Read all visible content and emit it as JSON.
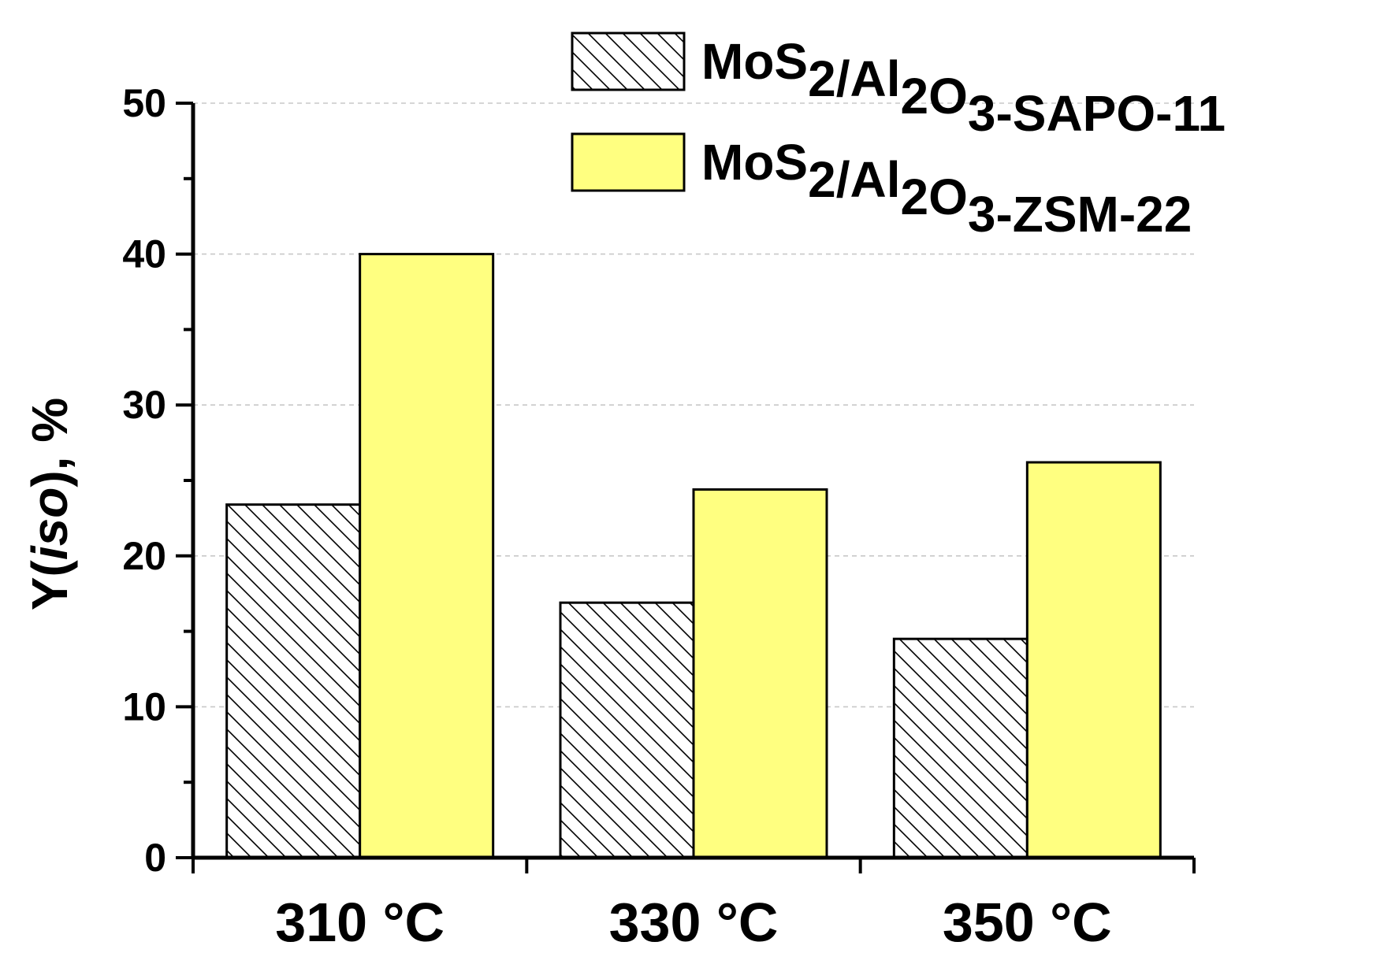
{
  "chart_data": {
    "type": "bar",
    "categories": [
      "310 °C",
      "330 °C",
      "350 °C"
    ],
    "series": [
      {
        "name": "MoS2/Al2O3-SAPO-11",
        "name_parts": [
          {
            "t": "MoS",
            "sub": false
          },
          {
            "t": "2",
            "sub": true
          },
          {
            "t": "/Al",
            "sub": false
          },
          {
            "t": "2",
            "sub": true
          },
          {
            "t": "O",
            "sub": false
          },
          {
            "t": "3",
            "sub": true
          },
          {
            "t": "-SAPO-11",
            "sub": false
          }
        ],
        "values": [
          23.4,
          16.9,
          14.5
        ],
        "fill": "hatch",
        "color": "#ffffff"
      },
      {
        "name": "MoS2/Al2O3-ZSM-22",
        "name_parts": [
          {
            "t": "MoS",
            "sub": false
          },
          {
            "t": "2",
            "sub": true
          },
          {
            "t": "/Al",
            "sub": false
          },
          {
            "t": "2",
            "sub": true
          },
          {
            "t": "O",
            "sub": false
          },
          {
            "t": "3",
            "sub": true
          },
          {
            "t": "-ZSM-22",
            "sub": false
          }
        ],
        "values": [
          40.0,
          24.4,
          26.2
        ],
        "fill": "solid",
        "color": "#ffff80"
      }
    ],
    "ylabel_parts": [
      {
        "t": "Y(",
        "italic": false
      },
      {
        "t": "iso",
        "italic": true
      },
      {
        "t": "), %",
        "italic": false
      }
    ],
    "ylim": [
      0,
      50
    ],
    "yticks": [
      "0",
      "10",
      "20",
      "30",
      "40",
      "50"
    ],
    "grid": "dashed horizontal",
    "legend_position": "top-right"
  }
}
